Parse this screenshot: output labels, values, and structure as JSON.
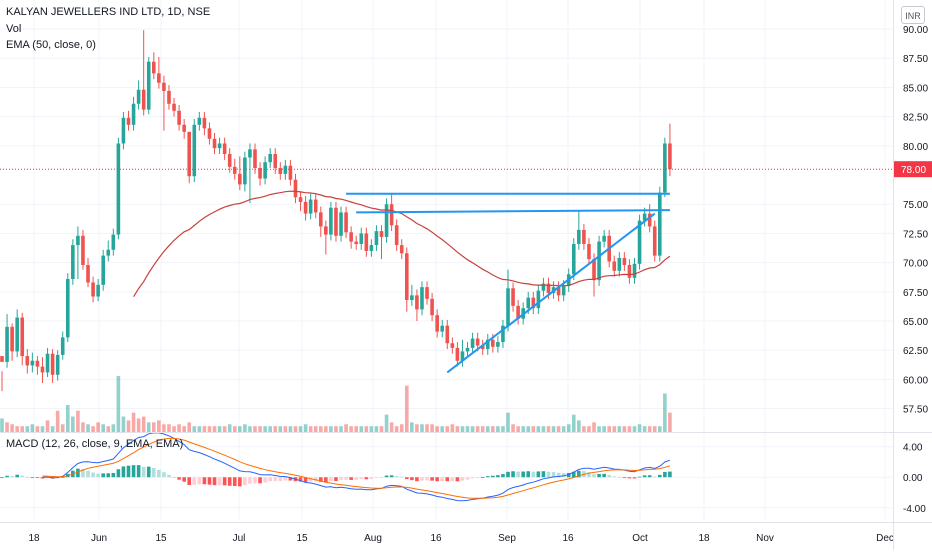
{
  "header": {
    "symbol": "KALYAN JEWELLERS IND LTD, 1D, NSE",
    "volume_label": "Vol",
    "ema_label": "EMA (50, close, 0)",
    "macd_label": "MACD (12, 26, close, 9, EMA, EMA)",
    "currency": "INR"
  },
  "chart_data": {
    "type": "candlestick",
    "colors": {
      "up": "#26a69a",
      "down": "#ef5350",
      "ema": "#c9413b",
      "macd": "#2962ff",
      "signal": "#ff6d00",
      "trendline": "#2196f3",
      "last_price": "#f23645"
    },
    "x_ticks": [
      "18",
      "Jun",
      "15",
      "Jul",
      "15",
      "Aug",
      "16",
      "Sep",
      "16",
      "Oct",
      "18",
      "Nov",
      "Dec"
    ],
    "price_axis": {
      "ticks": [
        "90.00",
        "87.50",
        "85.00",
        "82.50",
        "80.00",
        "75.00",
        "72.50",
        "70.00",
        "67.50",
        "65.00",
        "62.50",
        "60.00",
        "57.50"
      ],
      "range": [
        55.5,
        91.8
      ]
    },
    "last_price": "78.00",
    "macd_axis": {
      "ticks": [
        "4.00",
        "0.00",
        "-4.00"
      ],
      "range": [
        -5.6,
        5.4
      ]
    },
    "candles": [
      [
        62.0,
        61.5,
        60.7,
        59.0
      ],
      [
        61.5,
        64.5,
        65.6,
        61.0
      ],
      [
        64.5,
        62.4,
        64.8,
        61.6
      ],
      [
        62.4,
        65.3,
        66.0,
        61.9
      ],
      [
        65.3,
        62.0,
        65.7,
        61.2
      ],
      [
        62.0,
        61.2,
        62.6,
        60.5
      ],
      [
        61.2,
        61.6,
        62.3,
        60.6
      ],
      [
        61.6,
        61.1,
        62.0,
        60.4
      ],
      [
        61.1,
        60.6,
        61.9,
        59.7
      ],
      [
        60.6,
        62.2,
        62.7,
        60.2
      ],
      [
        62.2,
        60.4,
        62.6,
        59.7
      ],
      [
        60.4,
        62.1,
        62.5,
        59.9
      ],
      [
        62.1,
        63.6,
        64.1,
        61.7
      ],
      [
        63.6,
        68.6,
        69.1,
        63.2
      ],
      [
        68.6,
        71.5,
        72.0,
        68.1
      ],
      [
        71.5,
        72.3,
        73.1,
        68.6
      ],
      [
        72.3,
        69.8,
        72.8,
        69.4
      ],
      [
        69.8,
        68.3,
        70.4,
        67.9
      ],
      [
        68.3,
        67.1,
        68.8,
        66.6
      ],
      [
        67.1,
        68.1,
        68.6,
        66.7
      ],
      [
        68.1,
        70.6,
        71.1,
        67.6
      ],
      [
        70.6,
        71.1,
        71.9,
        70.1
      ],
      [
        71.1,
        72.4,
        72.9,
        70.6
      ],
      [
        72.4,
        80.2,
        80.7,
        72.0
      ],
      [
        80.2,
        82.4,
        82.9,
        79.7
      ],
      [
        82.4,
        81.8,
        83.0,
        81.3
      ],
      [
        81.8,
        83.6,
        84.2,
        81.3
      ],
      [
        83.6,
        84.8,
        85.6,
        83.1
      ],
      [
        84.8,
        83.1,
        89.9,
        82.6
      ],
      [
        83.1,
        87.2,
        87.6,
        82.7
      ],
      [
        87.2,
        86.2,
        88.0,
        85.7
      ],
      [
        86.2,
        85.4,
        87.6,
        84.9
      ],
      [
        85.4,
        84.7,
        86.0,
        81.3
      ],
      [
        84.7,
        83.6,
        85.2,
        83.1
      ],
      [
        83.6,
        83.0,
        84.1,
        82.5
      ],
      [
        83.0,
        81.8,
        83.5,
        81.3
      ],
      [
        81.8,
        81.2,
        82.3,
        80.6
      ],
      [
        81.2,
        77.4,
        79.9,
        76.8
      ],
      [
        77.4,
        81.8,
        82.3,
        76.9
      ],
      [
        81.8,
        82.4,
        82.9,
        81.3
      ],
      [
        82.4,
        81.5,
        82.9,
        80.9
      ],
      [
        81.5,
        80.6,
        82.0,
        80.1
      ],
      [
        80.6,
        79.8,
        81.1,
        79.3
      ],
      [
        79.8,
        80.2,
        80.7,
        79.3
      ],
      [
        80.2,
        79.3,
        80.7,
        78.8
      ],
      [
        79.3,
        78.2,
        79.8,
        77.7
      ],
      [
        78.2,
        77.6,
        78.9,
        77.1
      ],
      [
        77.6,
        76.7,
        79.1,
        76.2
      ],
      [
        76.7,
        79.0,
        79.5,
        76.1
      ],
      [
        79.0,
        79.7,
        80.2,
        75.1
      ],
      [
        79.7,
        78.1,
        80.2,
        77.6
      ],
      [
        78.1,
        77.2,
        78.6,
        76.6
      ],
      [
        77.2,
        78.6,
        79.1,
        76.7
      ],
      [
        78.6,
        79.3,
        79.8,
        78.1
      ],
      [
        79.3,
        78.1,
        79.8,
        77.6
      ],
      [
        78.1,
        77.6,
        78.6,
        77.1
      ],
      [
        77.6,
        78.3,
        78.8,
        77.1
      ],
      [
        78.3,
        77.1,
        78.8,
        76.6
      ],
      [
        77.1,
        75.6,
        77.6,
        75.1
      ],
      [
        75.6,
        75.2,
        76.1,
        74.4
      ],
      [
        75.2,
        74.2,
        75.7,
        73.6
      ],
      [
        74.2,
        75.4,
        75.9,
        73.7
      ],
      [
        75.4,
        74.3,
        75.9,
        73.8
      ],
      [
        74.3,
        73.1,
        74.8,
        72.2
      ],
      [
        73.1,
        72.4,
        73.6,
        70.7
      ],
      [
        72.4,
        74.7,
        75.2,
        71.9
      ],
      [
        74.7,
        72.3,
        75.2,
        71.8
      ],
      [
        72.3,
        74.3,
        74.8,
        71.8
      ],
      [
        74.3,
        72.6,
        74.8,
        72.1
      ],
      [
        72.6,
        71.8,
        73.1,
        71.2
      ],
      [
        71.8,
        71.6,
        72.3,
        71.1
      ],
      [
        71.6,
        72.5,
        73.0,
        71.1
      ],
      [
        72.5,
        71.0,
        73.0,
        70.5
      ],
      [
        71.0,
        71.5,
        72.0,
        70.5
      ],
      [
        71.5,
        72.7,
        73.2,
        71.0
      ],
      [
        72.7,
        72.2,
        73.2,
        70.3
      ],
      [
        72.2,
        75.0,
        75.5,
        71.7
      ],
      [
        75.0,
        73.2,
        75.9,
        72.7
      ],
      [
        73.2,
        71.5,
        73.7,
        71.0
      ],
      [
        71.5,
        70.8,
        72.0,
        70.3
      ],
      [
        70.8,
        66.8,
        71.3,
        65.8
      ],
      [
        66.8,
        67.2,
        68.1,
        66.3
      ],
      [
        67.2,
        66.0,
        67.7,
        65.0
      ],
      [
        66.0,
        67.9,
        68.4,
        65.5
      ],
      [
        67.9,
        66.9,
        68.4,
        66.4
      ],
      [
        66.9,
        65.5,
        67.4,
        65.0
      ],
      [
        65.5,
        64.1,
        66.0,
        63.6
      ],
      [
        64.1,
        64.6,
        65.1,
        63.6
      ],
      [
        64.6,
        63.1,
        65.1,
        62.6
      ],
      [
        63.1,
        62.7,
        63.6,
        62.2
      ],
      [
        62.7,
        61.6,
        63.2,
        61.1
      ],
      [
        61.6,
        62.4,
        63.4,
        61.1
      ],
      [
        62.4,
        62.7,
        63.2,
        61.9
      ],
      [
        62.7,
        63.5,
        64.0,
        62.2
      ],
      [
        63.5,
        62.9,
        64.0,
        62.4
      ],
      [
        62.9,
        62.6,
        63.4,
        62.1
      ],
      [
        62.6,
        63.4,
        63.9,
        62.1
      ],
      [
        63.4,
        62.8,
        63.9,
        62.3
      ],
      [
        62.8,
        63.2,
        63.7,
        62.3
      ],
      [
        63.2,
        64.6,
        65.1,
        62.7
      ],
      [
        64.6,
        67.8,
        69.4,
        64.1
      ],
      [
        67.8,
        66.3,
        68.3,
        65.8
      ],
      [
        66.3,
        65.2,
        66.8,
        64.7
      ],
      [
        65.2,
        66.1,
        66.6,
        64.7
      ],
      [
        66.1,
        67.0,
        67.5,
        65.6
      ],
      [
        67.0,
        66.1,
        67.5,
        65.6
      ],
      [
        66.1,
        67.6,
        68.1,
        65.6
      ],
      [
        67.6,
        68.2,
        68.7,
        67.1
      ],
      [
        68.2,
        67.4,
        68.7,
        66.9
      ],
      [
        67.4,
        67.9,
        68.4,
        66.9
      ],
      [
        67.9,
        67.2,
        68.4,
        66.7
      ],
      [
        67.2,
        68.0,
        68.5,
        66.7
      ],
      [
        68.0,
        69.0,
        69.5,
        67.5
      ],
      [
        69.0,
        71.6,
        72.1,
        68.5
      ],
      [
        71.6,
        72.8,
        74.5,
        71.1
      ],
      [
        72.8,
        71.6,
        73.3,
        71.1
      ],
      [
        71.6,
        70.3,
        72.1,
        69.8
      ],
      [
        70.3,
        68.5,
        70.8,
        67.1
      ],
      [
        68.5,
        71.8,
        72.3,
        68.0
      ],
      [
        71.8,
        72.3,
        72.8,
        71.3
      ],
      [
        72.3,
        70.1,
        72.8,
        69.6
      ],
      [
        70.1,
        69.3,
        70.6,
        68.8
      ],
      [
        69.3,
        70.4,
        70.9,
        68.8
      ],
      [
        70.4,
        69.8,
        70.9,
        69.3
      ],
      [
        69.8,
        68.7,
        70.3,
        68.2
      ],
      [
        68.7,
        69.9,
        70.4,
        68.2
      ],
      [
        69.9,
        73.6,
        74.1,
        69.4
      ],
      [
        73.6,
        74.2,
        74.7,
        73.1
      ],
      [
        74.2,
        73.1,
        75.0,
        72.6
      ],
      [
        73.1,
        70.6,
        73.6,
        70.1
      ],
      [
        70.6,
        76.0,
        76.5,
        70.1
      ],
      [
        76.0,
        80.2,
        80.7,
        75.6
      ],
      [
        80.2,
        78.0,
        81.9,
        77.4
      ]
    ],
    "volume": [
      [
        7,
        1
      ],
      [
        5,
        0
      ],
      [
        4,
        0
      ],
      [
        3,
        0
      ],
      [
        3,
        0
      ],
      [
        3,
        1
      ],
      [
        4,
        1
      ],
      [
        3,
        0
      ],
      [
        3,
        1
      ],
      [
        6,
        0
      ],
      [
        3,
        1
      ],
      [
        11,
        0
      ],
      [
        4,
        0
      ],
      [
        14,
        1
      ],
      [
        8,
        1
      ],
      [
        11,
        0
      ],
      [
        5,
        0
      ],
      [
        4,
        1
      ],
      [
        3,
        0
      ],
      [
        5,
        0
      ],
      [
        4,
        1
      ],
      [
        3,
        0
      ],
      [
        4,
        1
      ],
      [
        29,
        1
      ],
      [
        8,
        1
      ],
      [
        6,
        0
      ],
      [
        10,
        0
      ],
      [
        7,
        0
      ],
      [
        8,
        0
      ],
      [
        5,
        1
      ],
      [
        5,
        0
      ],
      [
        6,
        0
      ],
      [
        4,
        0
      ],
      [
        4,
        0
      ],
      [
        3,
        0
      ],
      [
        4,
        0
      ],
      [
        3,
        0
      ],
      [
        5,
        0
      ],
      [
        3,
        1
      ],
      [
        3,
        1
      ],
      [
        3,
        0
      ],
      [
        3,
        0
      ],
      [
        3,
        0
      ],
      [
        3,
        1
      ],
      [
        3,
        0
      ],
      [
        4,
        1
      ],
      [
        3,
        0
      ],
      [
        3,
        1
      ],
      [
        4,
        1
      ],
      [
        3,
        1
      ],
      [
        3,
        0
      ],
      [
        3,
        0
      ],
      [
        3,
        1
      ],
      [
        3,
        1
      ],
      [
        3,
        0
      ],
      [
        3,
        1
      ],
      [
        3,
        0
      ],
      [
        3,
        1
      ],
      [
        3,
        0
      ],
      [
        3,
        1
      ],
      [
        4,
        1
      ],
      [
        3,
        0
      ],
      [
        3,
        0
      ],
      [
        3,
        0
      ],
      [
        3,
        0
      ],
      [
        3,
        1
      ],
      [
        3,
        0
      ],
      [
        3,
        1
      ],
      [
        4,
        0
      ],
      [
        3,
        0
      ],
      [
        3,
        0
      ],
      [
        3,
        1
      ],
      [
        3,
        0
      ],
      [
        3,
        1
      ],
      [
        3,
        1
      ],
      [
        3,
        0
      ],
      [
        9,
        1
      ],
      [
        5,
        0
      ],
      [
        3,
        0
      ],
      [
        4,
        0
      ],
      [
        24,
        0
      ],
      [
        5,
        1
      ],
      [
        4,
        0
      ],
      [
        4,
        1
      ],
      [
        4,
        0
      ],
      [
        4,
        0
      ],
      [
        3,
        0
      ],
      [
        3,
        1
      ],
      [
        3,
        0
      ],
      [
        4,
        0
      ],
      [
        3,
        0
      ],
      [
        3,
        1
      ],
      [
        3,
        1
      ],
      [
        3,
        1
      ],
      [
        3,
        0
      ],
      [
        3,
        0
      ],
      [
        3,
        1
      ],
      [
        3,
        0
      ],
      [
        3,
        1
      ],
      [
        3,
        1
      ],
      [
        10,
        1
      ],
      [
        4,
        0
      ],
      [
        3,
        0
      ],
      [
        3,
        1
      ],
      [
        3,
        1
      ],
      [
        3,
        0
      ],
      [
        3,
        1
      ],
      [
        3,
        1
      ],
      [
        3,
        0
      ],
      [
        3,
        1
      ],
      [
        3,
        0
      ],
      [
        3,
        1
      ],
      [
        4,
        1
      ],
      [
        9,
        1
      ],
      [
        6,
        1
      ],
      [
        3,
        0
      ],
      [
        3,
        0
      ],
      [
        5,
        0
      ],
      [
        3,
        1
      ],
      [
        3,
        1
      ],
      [
        3,
        0
      ],
      [
        3,
        0
      ],
      [
        3,
        1
      ],
      [
        3,
        0
      ],
      [
        3,
        0
      ],
      [
        3,
        1
      ],
      [
        4,
        1
      ],
      [
        3,
        1
      ],
      [
        3,
        0
      ],
      [
        3,
        0
      ],
      [
        3,
        1
      ],
      [
        20,
        1
      ],
      [
        10,
        0
      ]
    ],
    "ema50": [
      null,
      null,
      null,
      null,
      null,
      null,
      null,
      null,
      null,
      null,
      null,
      null,
      null,
      null,
      null,
      null,
      null,
      null,
      null,
      null,
      null,
      null,
      null,
      null,
      null,
      null,
      null,
      null,
      null,
      null,
      null,
      null,
      null,
      null,
      null,
      null,
      null,
      null,
      null,
      null,
      null,
      null,
      null,
      null,
      null,
      null,
      null,
      null,
      null,
      null,
      null,
      null,
      null,
      null,
      null,
      null,
      null,
      null,
      null,
      null,
      null,
      null,
      null,
      null,
      null,
      null,
      null,
      null,
      null,
      null,
      null,
      null,
      null,
      null,
      null,
      null,
      null,
      null,
      null,
      null,
      null,
      null,
      null,
      null,
      null,
      null,
      null,
      null,
      null,
      null,
      null,
      null,
      null,
      null,
      null,
      null,
      null,
      null,
      null,
      null,
      null,
      null,
      null,
      null,
      null,
      null,
      null,
      null,
      null,
      null,
      null,
      null,
      null,
      null,
      null,
      null,
      null,
      null,
      null,
      null,
      null,
      null,
      null,
      null,
      null,
      null,
      null,
      null,
      null,
      null,
      null
    ],
    "macd": {
      "line": [],
      "signal": [],
      "hist": []
    },
    "trendlines": [
      {
        "from": [
          68,
          75.9
        ],
        "to": [
          132,
          75.9
        ]
      },
      {
        "from": [
          70,
          74.3
        ],
        "to": [
          132,
          74.5
        ]
      },
      {
        "from": [
          88,
          60.6
        ],
        "to": [
          129,
          74.2
        ]
      }
    ]
  }
}
